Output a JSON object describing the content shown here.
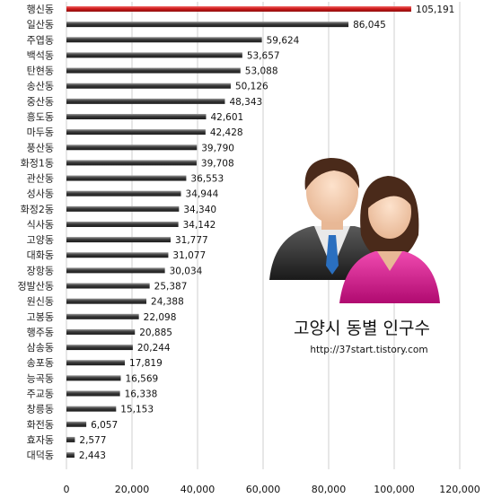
{
  "chart_data": {
    "type": "bar",
    "orientation": "horizontal",
    "title": "고양시 동별 인구수",
    "subtitle": "http://37start.tistory.com",
    "categories": [
      "행신동",
      "일산동",
      "주엽동",
      "백석동",
      "탄현동",
      "송산동",
      "중산동",
      "흥도동",
      "마두동",
      "풍산동",
      "화정1동",
      "관산동",
      "성사동",
      "화정2동",
      "식사동",
      "고양동",
      "대화동",
      "장항동",
      "정발산동",
      "원신동",
      "고봉동",
      "행주동",
      "삼송동",
      "송포동",
      "능곡동",
      "주교동",
      "창릉동",
      "화전동",
      "효자동",
      "대덕동"
    ],
    "values": [
      105191,
      86045,
      59624,
      53657,
      53088,
      50126,
      48343,
      42601,
      42428,
      39790,
      39708,
      36553,
      34944,
      34340,
      34142,
      31777,
      31077,
      30034,
      25387,
      24388,
      22098,
      20885,
      20244,
      17819,
      16569,
      16338,
      15153,
      6057,
      2577,
      2443
    ],
    "value_labels": [
      "105,191",
      "86,045",
      "59,624",
      "53,657",
      "53,088",
      "50,126",
      "48,343",
      "42,601",
      "42,428",
      "39,790",
      "39,708",
      "36,553",
      "34,944",
      "34,340",
      "34,142",
      "31,777",
      "31,077",
      "30,034",
      "25,387",
      "24,388",
      "22,098",
      "20,885",
      "20,244",
      "17,819",
      "16,569",
      "16,338",
      "15,153",
      "6,057",
      "2,577",
      "2,443"
    ],
    "xlim": [
      0,
      120000
    ],
    "xticks": [
      0,
      20000,
      40000,
      60000,
      80000,
      100000,
      120000
    ],
    "xtick_labels": [
      "0",
      "20,000",
      "40,000",
      "60,000",
      "80,000",
      "100,000",
      "120,000"
    ],
    "grid": true,
    "highlight_index": 0,
    "colors": {
      "bar": "#3a3a3a",
      "bar_highlight": "#d01c1c",
      "grid": "#cfcfcf"
    }
  },
  "illustration": {
    "icon": "people-icon",
    "man_suit": "#333333",
    "woman_shirt": "#e0188e"
  }
}
